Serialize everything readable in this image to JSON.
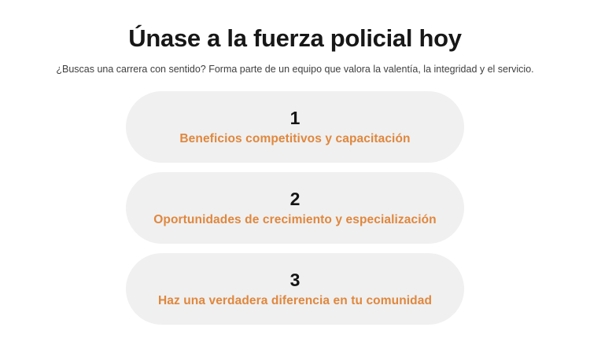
{
  "page": {
    "title": "Únase a la fuerza policial hoy",
    "subtitle": "¿Buscas una carrera con sentido? Forma parte de un equipo que valora la valentía, la integridad y el servicio."
  },
  "steps": [
    {
      "number": "1",
      "label": "Beneficios competitivos y capacitación"
    },
    {
      "number": "2",
      "label": "Oportunidades de crecimiento y especialización"
    },
    {
      "number": "3",
      "label": "Haz una verdadera diferencia en tu comunidad"
    }
  ],
  "colors": {
    "accent": "#e0873d",
    "card_background": "#f0f0f0",
    "heading_text": "#171717",
    "subtitle_text": "#3f3f3f",
    "page_background": "#ffffff"
  }
}
